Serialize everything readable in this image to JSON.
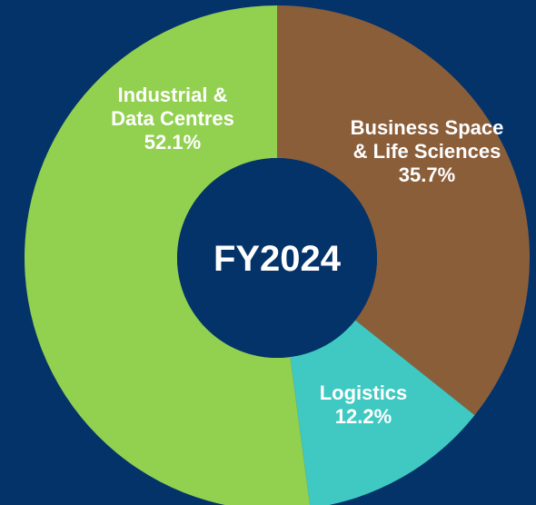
{
  "chart_data": {
    "type": "donut",
    "center_label": "FY2024",
    "categories": [
      "Business Space & Life Sciences",
      "Logistics",
      "Industrial & Data Centres"
    ],
    "values": [
      35.7,
      12.2,
      52.1
    ],
    "value_labels": [
      "35.7%",
      "12.2%",
      "52.1%"
    ],
    "colors": [
      "#8b5e3a",
      "#40c9c2",
      "#92d050"
    ]
  }
}
